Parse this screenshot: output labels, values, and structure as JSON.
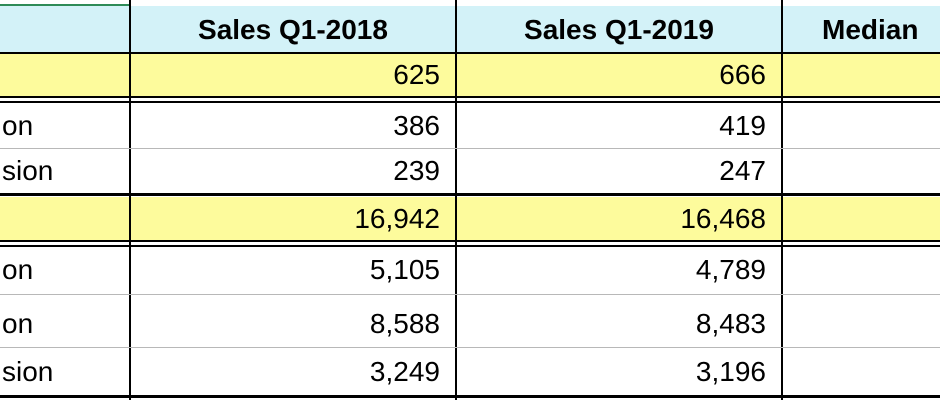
{
  "headers": {
    "col_label": "",
    "col_2018": "Sales Q1-2018",
    "col_2019": "Sales Q1-2019",
    "col_median": "Median"
  },
  "rows": [
    {
      "label": "",
      "q1_2018": "625",
      "q1_2019": "666",
      "median": "",
      "highlight": true
    },
    {
      "label": "on",
      "q1_2018": "386",
      "q1_2019": "419",
      "median": "",
      "highlight": false
    },
    {
      "label": "sion",
      "q1_2018": "239",
      "q1_2019": "247",
      "median": "",
      "highlight": false
    },
    {
      "label": "",
      "q1_2018": "16,942",
      "q1_2019": "16,468",
      "median": "",
      "highlight": true
    },
    {
      "label": "on",
      "q1_2018": "5,105",
      "q1_2019": "4,789",
      "median": "",
      "highlight": false
    },
    {
      "label": "on",
      "q1_2018": "8,588",
      "q1_2019": "8,483",
      "median": "",
      "highlight": false
    },
    {
      "label": "sion",
      "q1_2018": "3,249",
      "q1_2019": "3,196",
      "median": "",
      "highlight": false
    }
  ],
  "colors": {
    "header_bg": "#d3f2f8",
    "highlight_bg": "#fdfb9c",
    "selection_border": "#2e8b57"
  }
}
